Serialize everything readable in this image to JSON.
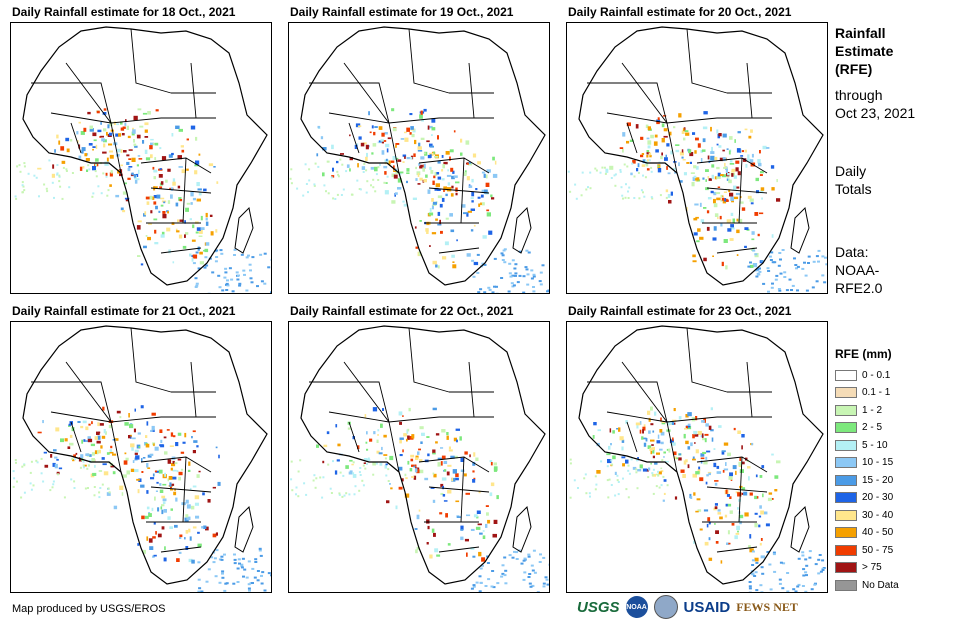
{
  "panels": [
    {
      "title": "Daily Rainfall estimate for 18 Oct., 2021"
    },
    {
      "title": "Daily Rainfall estimate for 19 Oct., 2021"
    },
    {
      "title": "Daily Rainfall estimate for 20 Oct., 2021"
    },
    {
      "title": "Daily Rainfall estimate for 21 Oct., 2021"
    },
    {
      "title": "Daily Rainfall estimate for 22 Oct., 2021"
    },
    {
      "title": "Daily Rainfall estimate for 23 Oct., 2021"
    }
  ],
  "side": {
    "heading_1": "Rainfall",
    "heading_2": "Estimate",
    "heading_3": "(RFE)",
    "through_1": "through",
    "through_2": "Oct 23, 2021",
    "totals_1": "Daily",
    "totals_2": "Totals",
    "data_1": "Data:",
    "data_2": "NOAA-",
    "data_3": "RFE2.0"
  },
  "legend": {
    "title": "RFE (mm)",
    "items": [
      {
        "label": "0 - 0.1",
        "color": "#ffffff"
      },
      {
        "label": "0.1 - 1",
        "color": "#f5dcb7"
      },
      {
        "label": "1 - 2",
        "color": "#c8f5b4"
      },
      {
        "label": "2 - 5",
        "color": "#7de87d"
      },
      {
        "label": "5 - 10",
        "color": "#b4f0f5"
      },
      {
        "label": "10 - 15",
        "color": "#8cc8f5"
      },
      {
        "label": "15 - 20",
        "color": "#4b9be6"
      },
      {
        "label": "20 - 30",
        "color": "#1e64e6"
      },
      {
        "label": "30 - 40",
        "color": "#ffe68c"
      },
      {
        "label": "40 - 50",
        "color": "#f5a000"
      },
      {
        "label": "50 - 75",
        "color": "#f03c00"
      },
      {
        "label": "> 75",
        "color": "#a01414"
      },
      {
        "label": "No Data",
        "color": "#969696"
      }
    ]
  },
  "footer": {
    "credit": "Map produced by USGS/EROS"
  },
  "logos": {
    "usgs": "USGS",
    "noaa": "NOAA",
    "usaid": "USAID",
    "fewsnet": "FEWS NET"
  }
}
